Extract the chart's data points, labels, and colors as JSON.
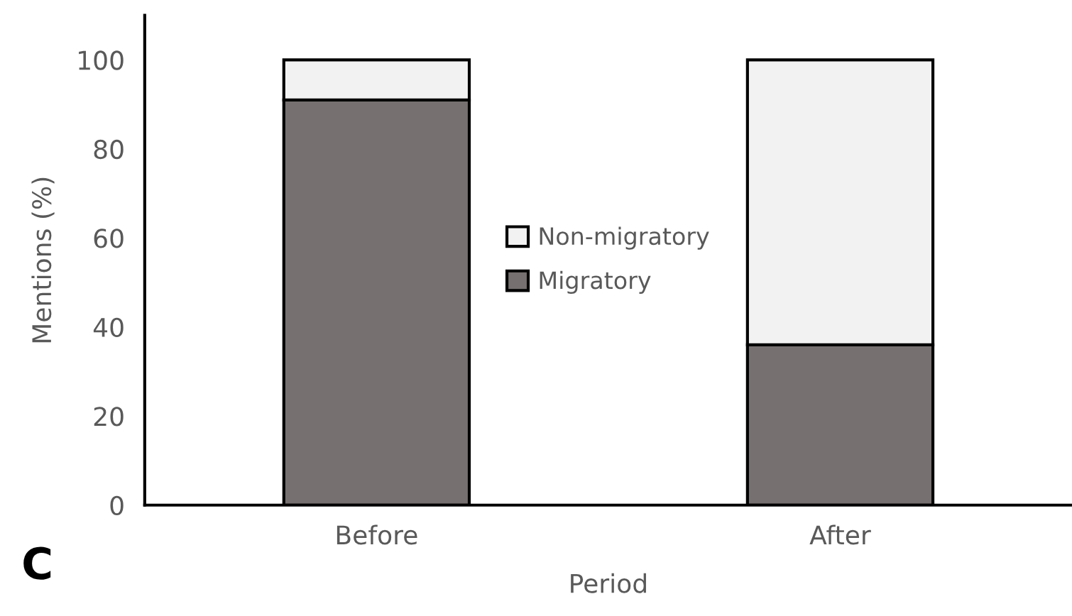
{
  "chart_data": {
    "type": "bar",
    "xlabel": "Period",
    "ylabel": "Mentions (%)",
    "categories": [
      "Before",
      "After"
    ],
    "stacked": true,
    "series": [
      {
        "name": "Migratory",
        "color": "#767070",
        "values": [
          91,
          36
        ]
      },
      {
        "name": "Non-migratory",
        "color": "#f2f2f2",
        "values": [
          9,
          64
        ]
      }
    ],
    "ylim": [
      0,
      110
    ],
    "yticks": [
      0,
      20,
      40,
      60,
      80,
      100
    ],
    "grid": false,
    "legend": "center",
    "annotations": [
      "C"
    ]
  }
}
